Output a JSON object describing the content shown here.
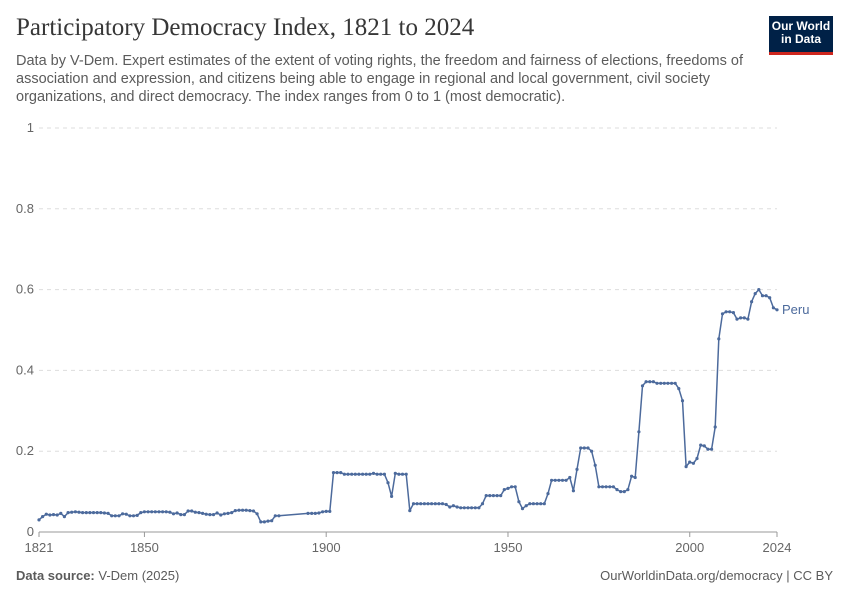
{
  "header": {
    "title": "Participatory Democracy Index, 1821 to 2024",
    "subtitle": "Data by V-Dem. Expert estimates of the extent of voting rights, the freedom and fairness of elections, freedoms of association and expression, and citizens being able to engage in regional and local government, civil society organizations, and direct democracy. The index ranges from 0 to 1 (most democratic).",
    "logo_line1": "Our World",
    "logo_line2": "in Data"
  },
  "footer": {
    "source_label": "Data source:",
    "source_value": "V-Dem (2025)",
    "url": "OurWorldinData.org/democracy | CC BY"
  },
  "colors": {
    "series": "#4c6a9c",
    "grid": "#dddddd",
    "logo_bg": "#002147",
    "logo_accent": "#ce261e"
  },
  "chart_data": {
    "type": "line",
    "title": "Participatory Democracy Index, 1821 to 2024",
    "xlim": [
      1821,
      2024
    ],
    "ylim": [
      0,
      1
    ],
    "x_ticks": [
      1821,
      1850,
      1900,
      1950,
      2000,
      2024
    ],
    "y_ticks": [
      0,
      0.2,
      0.4,
      0.6,
      0.8,
      1
    ],
    "y_tick_labels": [
      "0",
      "0.2",
      "0.4",
      "0.6",
      "0.8",
      "1"
    ],
    "grid": "horizontal dashed",
    "series": [
      {
        "name": "Peru",
        "points": [
          [
            1821,
            0.03
          ],
          [
            1822,
            0.038
          ],
          [
            1823,
            0.044
          ],
          [
            1824,
            0.042
          ],
          [
            1825,
            0.043
          ],
          [
            1826,
            0.042
          ],
          [
            1827,
            0.046
          ],
          [
            1828,
            0.038
          ],
          [
            1829,
            0.048
          ],
          [
            1830,
            0.049
          ],
          [
            1831,
            0.05
          ],
          [
            1832,
            0.049
          ],
          [
            1833,
            0.048
          ],
          [
            1834,
            0.048
          ],
          [
            1835,
            0.048
          ],
          [
            1836,
            0.048
          ],
          [
            1837,
            0.048
          ],
          [
            1838,
            0.048
          ],
          [
            1839,
            0.047
          ],
          [
            1840,
            0.046
          ],
          [
            1841,
            0.04
          ],
          [
            1842,
            0.04
          ],
          [
            1843,
            0.04
          ],
          [
            1844,
            0.045
          ],
          [
            1845,
            0.044
          ],
          [
            1846,
            0.04
          ],
          [
            1847,
            0.04
          ],
          [
            1848,
            0.041
          ],
          [
            1849,
            0.048
          ],
          [
            1850,
            0.05
          ],
          [
            1851,
            0.05
          ],
          [
            1852,
            0.05
          ],
          [
            1853,
            0.05
          ],
          [
            1854,
            0.05
          ],
          [
            1855,
            0.05
          ],
          [
            1856,
            0.05
          ],
          [
            1857,
            0.049
          ],
          [
            1858,
            0.045
          ],
          [
            1859,
            0.047
          ],
          [
            1860,
            0.043
          ],
          [
            1861,
            0.043
          ],
          [
            1862,
            0.052
          ],
          [
            1863,
            0.052
          ],
          [
            1864,
            0.049
          ],
          [
            1865,
            0.048
          ],
          [
            1866,
            0.046
          ],
          [
            1867,
            0.044
          ],
          [
            1868,
            0.043
          ],
          [
            1869,
            0.043
          ],
          [
            1870,
            0.047
          ],
          [
            1871,
            0.042
          ],
          [
            1872,
            0.045
          ],
          [
            1873,
            0.046
          ],
          [
            1874,
            0.048
          ],
          [
            1875,
            0.053
          ],
          [
            1876,
            0.054
          ],
          [
            1877,
            0.054
          ],
          [
            1878,
            0.054
          ],
          [
            1879,
            0.053
          ],
          [
            1880,
            0.052
          ],
          [
            1881,
            0.045
          ],
          [
            1882,
            0.025
          ],
          [
            1883,
            0.025
          ],
          [
            1884,
            0.027
          ],
          [
            1885,
            0.028
          ],
          [
            1886,
            0.04
          ],
          [
            1887,
            0.04
          ],
          [
            1895,
            0.046
          ],
          [
            1896,
            0.046
          ],
          [
            1897,
            0.046
          ],
          [
            1898,
            0.047
          ],
          [
            1899,
            0.05
          ],
          [
            1900,
            0.051
          ],
          [
            1901,
            0.051
          ],
          [
            1902,
            0.147
          ],
          [
            1903,
            0.147
          ],
          [
            1904,
            0.147
          ],
          [
            1905,
            0.143
          ],
          [
            1906,
            0.143
          ],
          [
            1907,
            0.143
          ],
          [
            1908,
            0.143
          ],
          [
            1909,
            0.143
          ],
          [
            1910,
            0.143
          ],
          [
            1911,
            0.143
          ],
          [
            1912,
            0.143
          ],
          [
            1913,
            0.145
          ],
          [
            1914,
            0.143
          ],
          [
            1915,
            0.143
          ],
          [
            1916,
            0.143
          ],
          [
            1917,
            0.122
          ],
          [
            1918,
            0.088
          ],
          [
            1919,
            0.145
          ],
          [
            1920,
            0.143
          ],
          [
            1921,
            0.143
          ],
          [
            1922,
            0.143
          ],
          [
            1923,
            0.053
          ],
          [
            1924,
            0.07
          ],
          [
            1925,
            0.07
          ],
          [
            1926,
            0.07
          ],
          [
            1927,
            0.07
          ],
          [
            1928,
            0.07
          ],
          [
            1929,
            0.07
          ],
          [
            1930,
            0.07
          ],
          [
            1931,
            0.07
          ],
          [
            1932,
            0.07
          ],
          [
            1933,
            0.068
          ],
          [
            1934,
            0.062
          ],
          [
            1935,
            0.065
          ],
          [
            1936,
            0.062
          ],
          [
            1937,
            0.06
          ],
          [
            1938,
            0.06
          ],
          [
            1939,
            0.06
          ],
          [
            1940,
            0.06
          ],
          [
            1941,
            0.06
          ],
          [
            1942,
            0.06
          ],
          [
            1943,
            0.07
          ],
          [
            1944,
            0.09
          ],
          [
            1945,
            0.09
          ],
          [
            1946,
            0.09
          ],
          [
            1947,
            0.09
          ],
          [
            1948,
            0.09
          ],
          [
            1949,
            0.105
          ],
          [
            1950,
            0.108
          ],
          [
            1951,
            0.112
          ],
          [
            1952,
            0.112
          ],
          [
            1953,
            0.075
          ],
          [
            1954,
            0.058
          ],
          [
            1955,
            0.065
          ],
          [
            1956,
            0.07
          ],
          [
            1957,
            0.07
          ],
          [
            1958,
            0.07
          ],
          [
            1959,
            0.07
          ],
          [
            1960,
            0.07
          ],
          [
            1961,
            0.095
          ],
          [
            1962,
            0.128
          ],
          [
            1963,
            0.128
          ],
          [
            1964,
            0.128
          ],
          [
            1965,
            0.128
          ],
          [
            1966,
            0.128
          ],
          [
            1967,
            0.135
          ],
          [
            1968,
            0.102
          ],
          [
            1969,
            0.155
          ],
          [
            1970,
            0.208
          ],
          [
            1971,
            0.208
          ],
          [
            1972,
            0.208
          ],
          [
            1973,
            0.2
          ],
          [
            1974,
            0.165
          ],
          [
            1975,
            0.112
          ],
          [
            1976,
            0.112
          ],
          [
            1977,
            0.112
          ],
          [
            1978,
            0.112
          ],
          [
            1979,
            0.112
          ],
          [
            1980,
            0.105
          ],
          [
            1981,
            0.1
          ],
          [
            1982,
            0.1
          ],
          [
            1983,
            0.105
          ],
          [
            1984,
            0.138
          ],
          [
            1985,
            0.135
          ],
          [
            1986,
            0.248
          ],
          [
            1987,
            0.362
          ],
          [
            1988,
            0.372
          ],
          [
            1989,
            0.372
          ],
          [
            1990,
            0.372
          ],
          [
            1991,
            0.368
          ],
          [
            1992,
            0.368
          ],
          [
            1993,
            0.368
          ],
          [
            1994,
            0.368
          ],
          [
            1995,
            0.368
          ],
          [
            1996,
            0.368
          ],
          [
            1997,
            0.355
          ],
          [
            1998,
            0.325
          ],
          [
            1999,
            0.162
          ],
          [
            2000,
            0.173
          ],
          [
            2001,
            0.17
          ],
          [
            2002,
            0.182
          ],
          [
            2003,
            0.215
          ],
          [
            2004,
            0.213
          ],
          [
            2005,
            0.205
          ],
          [
            2006,
            0.205
          ],
          [
            2007,
            0.26
          ],
          [
            2008,
            0.478
          ],
          [
            2009,
            0.54
          ],
          [
            2010,
            0.545
          ],
          [
            2011,
            0.545
          ],
          [
            2012,
            0.543
          ],
          [
            2013,
            0.527
          ],
          [
            2014,
            0.53
          ],
          [
            2015,
            0.53
          ],
          [
            2016,
            0.527
          ],
          [
            2017,
            0.57
          ],
          [
            2018,
            0.59
          ],
          [
            2019,
            0.6
          ],
          [
            2020,
            0.585
          ],
          [
            2021,
            0.585
          ],
          [
            2022,
            0.58
          ],
          [
            2023,
            0.555
          ],
          [
            2024,
            0.55
          ]
        ]
      }
    ]
  }
}
